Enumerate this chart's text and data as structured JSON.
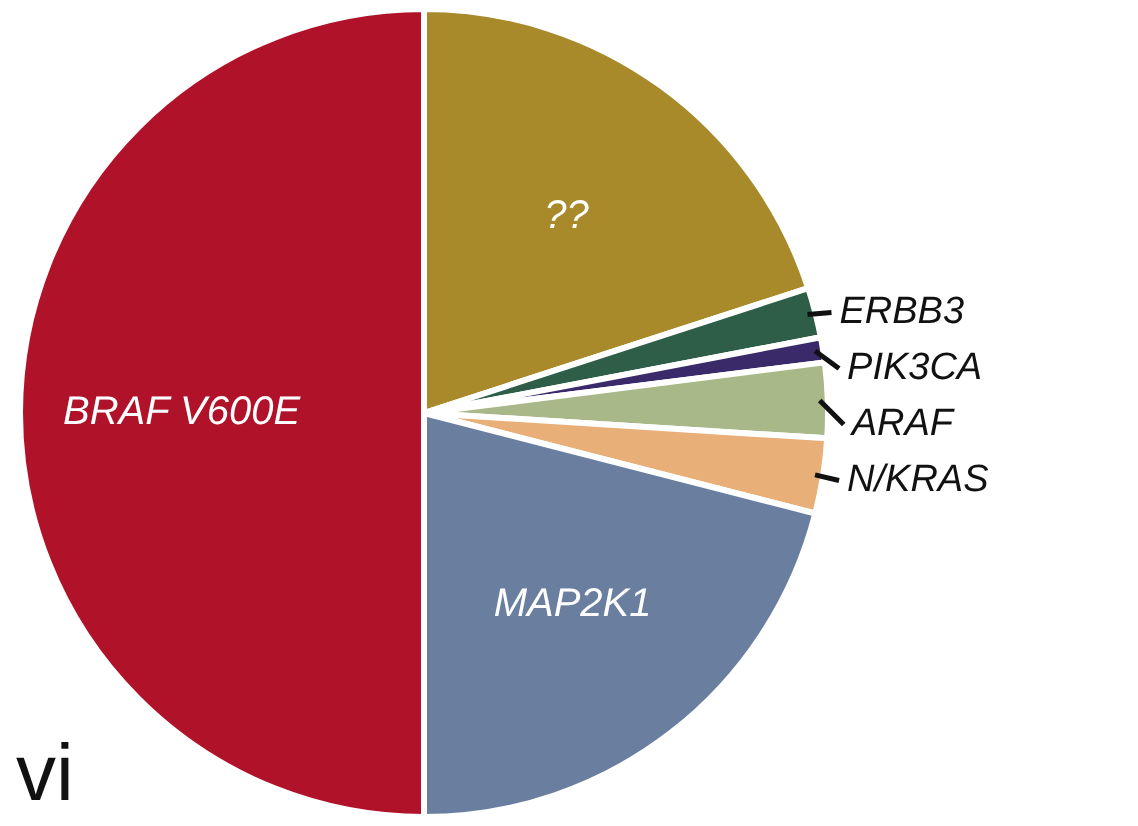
{
  "chart_data": {
    "type": "pie",
    "categories": [
      "??",
      "ERBB3",
      "PIK3CA",
      "ARAF",
      "N/KRAS",
      "MAP2K1",
      "BRAF V600E"
    ],
    "values": [
      20,
      2,
      1,
      3,
      3,
      21,
      50
    ],
    "colors": [
      "#a88a2a",
      "#2e5e48",
      "#3a2a6a",
      "#a8b888",
      "#e8b078",
      "#6a7ea0",
      "#b0122a"
    ],
    "annotations": [
      "vi"
    ],
    "legend": false
  }
}
